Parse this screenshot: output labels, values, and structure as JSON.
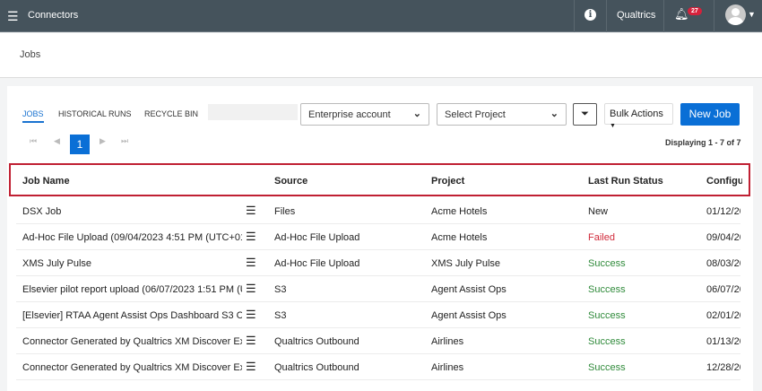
{
  "topbar": {
    "title": "Connectors",
    "brand": "Qualtrics",
    "notifications": "27"
  },
  "page": {
    "title": "Jobs"
  },
  "tabs": [
    {
      "label": "JOBS"
    },
    {
      "label": "HISTORICAL RUNS"
    },
    {
      "label": "RECYCLE BIN"
    }
  ],
  "filters": {
    "account": "Enterprise account",
    "project": "Select Project",
    "bulk": "Bulk Actions",
    "new_job": "New Job"
  },
  "pagination": {
    "current": "1",
    "display": "Displaying 1 - 7 of 7"
  },
  "columns": [
    "Job Name",
    "Source",
    "Project",
    "Last Run Status",
    "Configu"
  ],
  "rows": [
    {
      "name": "DSX Job",
      "source": "Files",
      "project": "Acme Hotels",
      "status": "New",
      "config": "01/12/20"
    },
    {
      "name": "Ad-Hoc File Upload (09/04/2023 4:51 PM (UTC+01:...",
      "source": "Ad-Hoc File Upload",
      "project": "Acme Hotels",
      "status": "Failed",
      "config": "09/04/20"
    },
    {
      "name": "XMS July Pulse",
      "source": "Ad-Hoc File Upload",
      "project": "XMS July Pulse",
      "status": "Success",
      "config": "08/03/20"
    },
    {
      "name": "Elsevier pilot report upload (06/07/2023 1:51 PM (U...",
      "source": "S3",
      "project": "Agent Assist Ops",
      "status": "Success",
      "config": "06/07/20"
    },
    {
      "name": "[Elsevier] RTAA Agent Assist Ops Dashboard S3 Co...",
      "source": "S3",
      "project": "Agent Assist Ops",
      "status": "Success",
      "config": "02/01/20"
    },
    {
      "name": "Connector Generated by Qualtrics XM Discover Ext...",
      "source": "Qualtrics Outbound",
      "project": "Airlines",
      "status": "Success",
      "config": "01/13/20"
    },
    {
      "name": "Connector Generated by Qualtrics XM Discover Ext...",
      "source": "Qualtrics Outbound",
      "project": "Airlines",
      "status": "Success",
      "config": "12/28/20"
    }
  ],
  "colors": {
    "topbar": "#45535c",
    "accent": "#0a6fd6",
    "failed": "#d02b3b",
    "success": "#2f8a3a",
    "highlight": "#c02033"
  }
}
